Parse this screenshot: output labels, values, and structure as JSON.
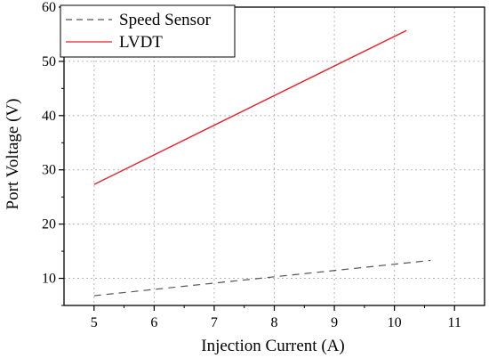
{
  "chart_data": {
    "type": "line",
    "xlabel": "Injection Current (A)",
    "ylabel": "Port Voltage (V)",
    "xlim": [
      4.5,
      11.5
    ],
    "ylim": [
      5,
      60
    ],
    "xticks": [
      5,
      6,
      7,
      8,
      9,
      10,
      11
    ],
    "yticks": [
      10,
      20,
      30,
      40,
      50,
      60
    ],
    "grid": "dotted",
    "legend_position": "top-left",
    "series": [
      {
        "name": "Speed Sensor",
        "style": "dashed",
        "color": "#555555",
        "x": [
          5,
          10.6
        ],
        "y": [
          6.8,
          13.3
        ]
      },
      {
        "name": "LVDT",
        "style": "solid",
        "color": "#e8202a",
        "x": [
          5,
          10.2
        ],
        "y": [
          27.3,
          55.7
        ]
      }
    ]
  }
}
